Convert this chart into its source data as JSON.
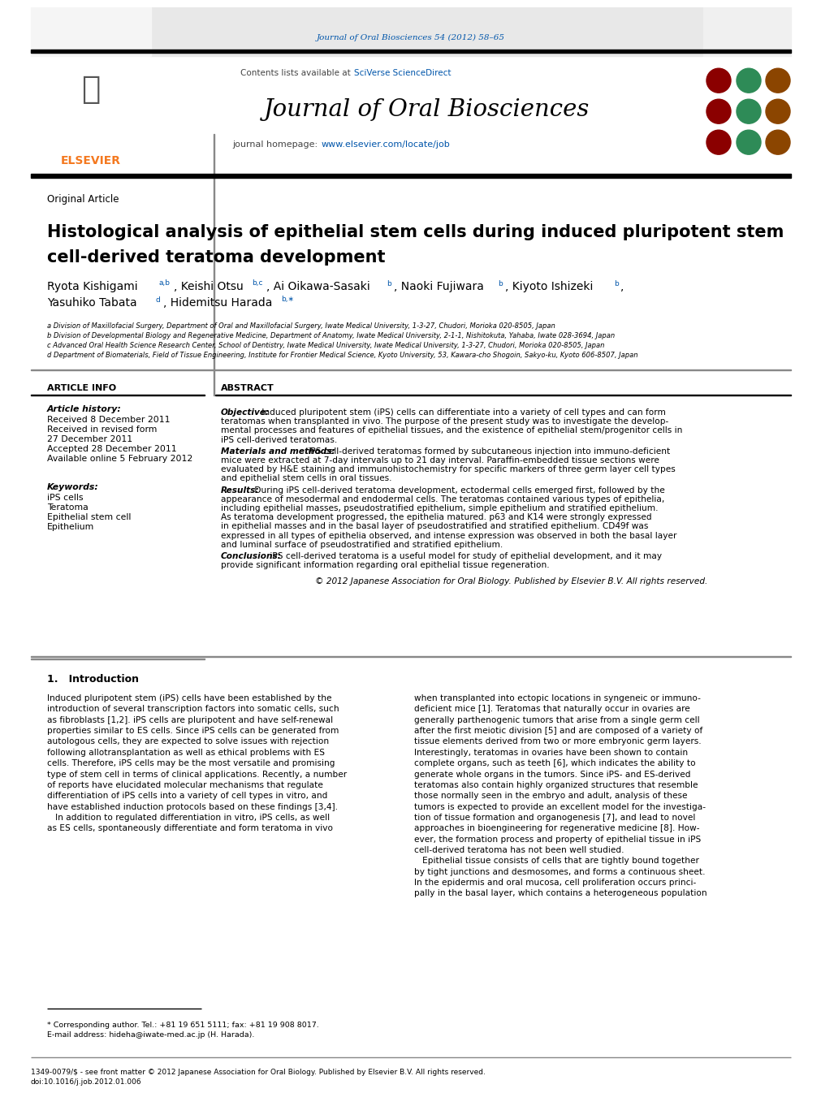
{
  "journal_ref": "Journal of Oral Biosciences 54 (2012) 58–65",
  "journal_name": "Journal of Oral Biosciences",
  "journal_homepage": "journal homepage: www.elsevier.com/locate/job",
  "contents_line": "Contents lists available at SciVerse ScienceDirect",
  "article_type": "Original Article",
  "title_line1": "Histological analysis of epithelial stem cells during induced pluripotent stem",
  "title_line2": "cell-derived teratoma development",
  "affil_a": "a Division of Maxillofacial Surgery, Department of Oral and Maxillofacial Surgery, Iwate Medical University, 1-3-27, Chudori, Morioka 020-8505, Japan",
  "affil_b": "b Division of Developmental Biology and Regenerative Medicine, Department of Anatomy, Iwate Medical University, 2-1-1, Nishitokuta, Yahaba, Iwate 028-3694, Japan",
  "affil_c": "c Advanced Oral Health Science Research Center, School of Dentistry, Iwate Medical University, Iwate Medical University, 1-3-27, Chudori, Morioka 020-8505, Japan",
  "affil_d": "d Department of Biomaterials, Field of Tissue Engineering, Institute for Frontier Medical Science, Kyoto University, 53, Kawara-cho Shogoin, Sakyo-ku, Kyoto 606-8507, Japan",
  "article_info_label": "ARTICLE INFO",
  "abstract_label": "ABSTRACT",
  "article_history_label": "Article history:",
  "received1": "Received 8 December 2011",
  "received2": "Received in revised form",
  "received2b": "27 December 2011",
  "accepted": "Accepted 28 December 2011",
  "available": "Available online 5 February 2012",
  "keywords_label": "Keywords:",
  "kw1": "iPS cells",
  "kw2": "Teratoma",
  "kw3": "Epithelial stem cell",
  "kw4": "Epithelium",
  "abstract_obj_label": "Objective:",
  "abstract_obj": " Induced pluripotent stem (iPS) cells can differentiate into a variety of cell types and can form\nteratomas when transplanted in vivo. The purpose of the present study was to investigate the develop-\nmental processes and features of epithelial tissues, and the existence of epithelial stem/progenitor cells in\niPS cell-derived teratomas.",
  "abstract_mm_label": "Materials and methods:",
  "abstract_mm": " iPS cell-derived teratomas formed by subcutaneous injection into immuno-deficient\nmice were extracted at 7-day intervals up to 21 day interval. Paraffin-embedded tissue sections were\nevaluated by H&E staining and immunohistochemistry for specific markers of three germ layer cell types\nand epithelial stem cells in oral tissues.",
  "abstract_res_label": "Results:",
  "abstract_res": " During iPS cell-derived teratoma development, ectodermal cells emerged first, followed by the\nappearance of mesodermal and endodermal cells. The teratomas contained various types of epithelia,\nincluding epithelial masses, pseudostratified epithelium, simple epithelium and stratified epithelium.\nAs teratoma development progressed, the epithelia matured. p63 and K14 were strongly expressed\nin epithelial masses and in the basal layer of pseudostratified and stratified epithelium. CD49f was\nexpressed in all types of epithelia observed, and intense expression was observed in both the basal layer\nand luminal surface of pseudostratified and stratified epithelium.",
  "abstract_con_label": "Conclusions:",
  "abstract_con": " iPS cell-derived teratoma is a useful model for study of epithelial development, and it may\nprovide significant information regarding oral epithelial tissue regeneration.",
  "abstract_copy": "© 2012 Japanese Association for Oral Biology. Published by Elsevier B.V. All rights reserved.",
  "intro_heading": "1.   Introduction",
  "intro_col1_line1": "Induced pluripotent stem (iPS) cells have been established by the",
  "intro_col1": "Induced pluripotent stem (iPS) cells have been established by the\nintroduction of several transcription factors into somatic cells, such\nas fibroblasts [1,2]. iPS cells are pluripotent and have self-renewal\nproperties similar to ES cells. Since iPS cells can be generated from\nautologous cells, they are expected to solve issues with rejection\nfollowing allotransplantation as well as ethical problems with ES\ncells. Therefore, iPS cells may be the most versatile and promising\ntype of stem cell in terms of clinical applications. Recently, a number\nof reports have elucidated molecular mechanisms that regulate\ndifferentiation of iPS cells into a variety of cell types in vitro, and\nhave established induction protocols based on these findings [3,4].\n   In addition to regulated differentiation in vitro, iPS cells, as well\nas ES cells, spontaneously differentiate and form teratoma in vivo",
  "intro_col2": "when transplanted into ectopic locations in syngeneic or immuno-\ndeficient mice [1]. Teratomas that naturally occur in ovaries are\ngenerally parthenogenic tumors that arise from a single germ cell\nafter the first meiotic division [5] and are composed of a variety of\ntissue elements derived from two or more embryonic germ layers.\nInterestingly, teratomas in ovaries have been shown to contain\ncomplete organs, such as teeth [6], which indicates the ability to\ngenerate whole organs in the tumors. Since iPS- and ES-derived\nteratomas also contain highly organized structures that resemble\nthose normally seen in the embryo and adult, analysis of these\ntumors is expected to provide an excellent model for the investiga-\ntion of tissue formation and organogenesis [7], and lead to novel\napproaches in bioengineering for regenerative medicine [8]. How-\never, the formation process and property of epithelial tissue in iPS\ncell-derived teratoma has not been well studied.\n   Epithelial tissue consists of cells that are tightly bound together\nby tight junctions and desmosomes, and forms a continuous sheet.\nIn the epidermis and oral mucosa, cell proliferation occurs princi-\npally in the basal layer, which contains a heterogeneous population",
  "footer_text": "* Corresponding author. Tel.: +81 19 651 5111; fax: +81 19 908 8017.\nE-mail address: hideha@iwate-med.ac.jp (H. Harada).",
  "footer_issn": "1349-0079/$ - see front matter © 2012 Japanese Association for Oral Biology. Published by Elsevier B.V. All rights reserved.\ndoi:10.1016/j.job.2012.01.006",
  "bg_color": "#ffffff",
  "header_bg": "#e8e8e8",
  "black": "#000000",
  "dark_gray": "#444444",
  "blue_link": "#0055aa",
  "elsevier_orange": "#f47920",
  "gray_line": "#888888"
}
